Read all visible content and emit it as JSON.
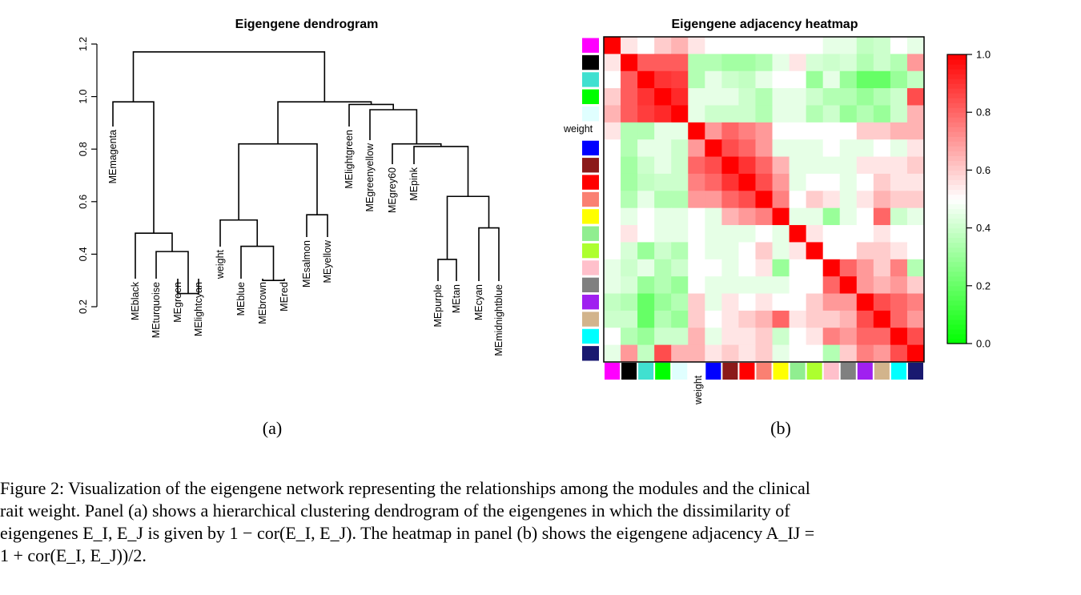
{
  "figure": {
    "panel_a_label": "(a)",
    "panel_b_label": "(b)",
    "caption_lines": [
      "Figure 2: Visualization of the eigengene network representing the relationships among the modules and the clinical",
      "rait weight. Panel (a) shows a hierarchical clustering dendrogram of the eigengenes in which the dissimilarity of",
      "eigengenes E_I, E_J is given by 1 − cor(E_I, E_J). The heatmap in panel (b) shows the eigengene adjacency A_IJ =",
      "1 + cor(E_I, E_J))/2."
    ]
  },
  "chart_data": [
    {
      "type": "dendrogram",
      "title": "Eigengene dendrogram",
      "ylim": [
        0.2,
        1.2
      ],
      "yticks": [
        "0.2",
        "0.4",
        "0.6",
        "0.8",
        "1.0",
        "1.2"
      ],
      "leaves": [
        "MEmagenta",
        "MEblack",
        "MEturquoise",
        "MEgreen",
        "MElightcyan",
        "weight",
        "MEblue",
        "MEbrown",
        "MEred",
        "MEsalmon",
        "MEyellow",
        "MElightgreen",
        "MEgreenyellow",
        "MEgrey60",
        "MEpink",
        "MEpurple",
        "MEtan",
        "MEcyan",
        "MEmidnightblue"
      ],
      "merges": [
        {
          "a": "MEgreen",
          "b": "MElightcyan",
          "height": 0.25
        },
        {
          "a": "MEturquoise",
          "b": "MEgreen+MElightcyan",
          "height": 0.41
        },
        {
          "a": "MEblack",
          "b": "MEturquoise-group",
          "height": 0.48
        },
        {
          "a": "MEmagenta",
          "b": "MEblack-group",
          "height": 0.98
        },
        {
          "a": "MEbrown",
          "b": "MEred",
          "height": 0.3
        },
        {
          "a": "MEblue",
          "b": "MEbrown+MEred",
          "height": 0.43
        },
        {
          "a": "weight",
          "b": "MEblue-group",
          "height": 0.53
        },
        {
          "a": "MEsalmon",
          "b": "MEyellow",
          "height": 0.55
        },
        {
          "a": "weight-group",
          "b": "MEsalmon+MEyellow",
          "height": 0.82
        },
        {
          "a": "MEpurple",
          "b": "MEtan",
          "height": 0.38
        },
        {
          "a": "MEcyan",
          "b": "MEmidnightblue",
          "height": 0.5
        },
        {
          "a": "MEpurple+MEtan",
          "b": "MEcyan+MEmidnightblue",
          "height": 0.62
        },
        {
          "a": "MEpink",
          "b": "MEpurple-group",
          "height": 0.81
        },
        {
          "a": "MEgrey60",
          "b": "MEpink-group",
          "height": 0.82
        },
        {
          "a": "MEgreenyellow",
          "b": "MEgrey60-group",
          "height": 0.95
        },
        {
          "a": "MElightgreen",
          "b": "MEgreenyellow-group",
          "height": 0.97
        },
        {
          "a": "weight-group2",
          "b": "MElightgreen-group",
          "height": 0.98
        },
        {
          "a": "left-cluster",
          "b": "right-cluster",
          "height": 1.17
        }
      ]
    },
    {
      "type": "heatmap",
      "title": "Eigengene adjacency heatmap",
      "row_label": "weight",
      "col_label": "weight",
      "order": [
        "magenta",
        "black",
        "turquoise",
        "green",
        "lightcyan",
        "weight",
        "blue",
        "brown",
        "red",
        "salmon",
        "yellow",
        "lightgreen",
        "greenyellow",
        "pink",
        "grey60",
        "purple",
        "tan",
        "cyan",
        "midnightblue"
      ],
      "row_colors": [
        "#ff00ff",
        "#000000",
        "#40e0d0",
        "#00ff00",
        "#e0ffff",
        "#ffffff",
        "#0000ff",
        "#8b1a1a",
        "#ff0000",
        "#fa8072",
        "#ffff00",
        "#90ee90",
        "#adff2f",
        "#ffc0cb",
        "#808080",
        "#a020f0",
        "#d2b48c",
        "#00ffff",
        "#191970"
      ],
      "colorbar_ticks": [
        "0.0",
        "0.2",
        "0.4",
        "0.6",
        "0.8",
        "1.0"
      ],
      "clim": [
        0,
        1
      ],
      "values": [
        [
          1.0,
          0.55,
          0.5,
          0.6,
          0.65,
          0.55,
          0.5,
          0.5,
          0.5,
          0.5,
          0.5,
          0.5,
          0.5,
          0.45,
          0.45,
          0.38,
          0.4,
          0.5,
          0.45
        ],
        [
          0.55,
          1.0,
          0.82,
          0.82,
          0.82,
          0.35,
          0.35,
          0.32,
          0.32,
          0.35,
          0.45,
          0.55,
          0.42,
          0.4,
          0.42,
          0.35,
          0.4,
          0.35,
          0.7
        ],
        [
          0.5,
          0.82,
          1.0,
          0.9,
          0.88,
          0.35,
          0.45,
          0.4,
          0.38,
          0.45,
          0.5,
          0.5,
          0.3,
          0.45,
          0.3,
          0.2,
          0.2,
          0.3,
          0.38
        ],
        [
          0.6,
          0.82,
          0.9,
          1.0,
          0.92,
          0.45,
          0.45,
          0.45,
          0.4,
          0.35,
          0.45,
          0.45,
          0.4,
          0.35,
          0.35,
          0.3,
          0.35,
          0.4,
          0.85
        ],
        [
          0.65,
          0.82,
          0.88,
          0.92,
          1.0,
          0.45,
          0.4,
          0.4,
          0.4,
          0.35,
          0.45,
          0.45,
          0.35,
          0.4,
          0.3,
          0.35,
          0.3,
          0.4,
          0.65
        ],
        [
          0.55,
          0.35,
          0.35,
          0.45,
          0.45,
          1.0,
          0.7,
          0.8,
          0.75,
          0.7,
          0.5,
          0.5,
          0.5,
          0.5,
          0.5,
          0.6,
          0.6,
          0.65,
          0.65
        ],
        [
          0.5,
          0.35,
          0.45,
          0.45,
          0.4,
          0.7,
          1.0,
          0.85,
          0.8,
          0.7,
          0.45,
          0.45,
          0.45,
          0.5,
          0.45,
          0.45,
          0.5,
          0.45,
          0.55
        ],
        [
          0.5,
          0.32,
          0.4,
          0.45,
          0.4,
          0.8,
          0.85,
          1.0,
          0.9,
          0.8,
          0.65,
          0.45,
          0.45,
          0.45,
          0.45,
          0.55,
          0.55,
          0.55,
          0.6
        ],
        [
          0.5,
          0.32,
          0.38,
          0.4,
          0.4,
          0.75,
          0.8,
          0.9,
          1.0,
          0.85,
          0.7,
          0.45,
          0.5,
          0.5,
          0.45,
          0.5,
          0.6,
          0.55,
          0.55
        ],
        [
          0.5,
          0.35,
          0.45,
          0.35,
          0.35,
          0.7,
          0.7,
          0.8,
          0.85,
          1.0,
          0.75,
          0.5,
          0.6,
          0.55,
          0.45,
          0.55,
          0.65,
          0.6,
          0.6
        ],
        [
          0.5,
          0.45,
          0.5,
          0.45,
          0.45,
          0.5,
          0.45,
          0.65,
          0.7,
          0.75,
          1.0,
          0.45,
          0.45,
          0.3,
          0.45,
          0.5,
          0.8,
          0.4,
          0.45
        ],
        [
          0.5,
          0.55,
          0.5,
          0.45,
          0.45,
          0.5,
          0.45,
          0.45,
          0.45,
          0.5,
          0.45,
          1.0,
          0.55,
          0.5,
          0.5,
          0.5,
          0.55,
          0.5,
          0.5
        ],
        [
          0.5,
          0.42,
          0.3,
          0.4,
          0.35,
          0.5,
          0.45,
          0.45,
          0.5,
          0.6,
          0.45,
          0.55,
          1.0,
          0.5,
          0.5,
          0.6,
          0.6,
          0.55,
          0.5
        ],
        [
          0.45,
          0.4,
          0.45,
          0.35,
          0.4,
          0.5,
          0.5,
          0.45,
          0.5,
          0.55,
          0.3,
          0.5,
          0.5,
          1.0,
          0.8,
          0.7,
          0.6,
          0.75,
          0.35
        ],
        [
          0.45,
          0.42,
          0.3,
          0.35,
          0.3,
          0.5,
          0.45,
          0.45,
          0.45,
          0.45,
          0.45,
          0.5,
          0.5,
          0.8,
          1.0,
          0.7,
          0.65,
          0.7,
          0.6
        ],
        [
          0.38,
          0.35,
          0.2,
          0.3,
          0.35,
          0.6,
          0.45,
          0.55,
          0.5,
          0.55,
          0.5,
          0.5,
          0.6,
          0.7,
          0.7,
          1.0,
          0.85,
          0.8,
          0.75
        ],
        [
          0.4,
          0.4,
          0.2,
          0.35,
          0.3,
          0.6,
          0.5,
          0.55,
          0.6,
          0.65,
          0.8,
          0.55,
          0.6,
          0.6,
          0.65,
          0.85,
          1.0,
          0.8,
          0.7
        ],
        [
          0.5,
          0.35,
          0.3,
          0.4,
          0.4,
          0.65,
          0.45,
          0.55,
          0.55,
          0.6,
          0.4,
          0.5,
          0.55,
          0.75,
          0.7,
          0.8,
          0.8,
          1.0,
          0.85
        ],
        [
          0.45,
          0.7,
          0.38,
          0.85,
          0.65,
          0.65,
          0.55,
          0.6,
          0.55,
          0.6,
          0.45,
          0.5,
          0.5,
          0.35,
          0.6,
          0.75,
          0.7,
          0.85,
          1.0
        ]
      ]
    }
  ]
}
